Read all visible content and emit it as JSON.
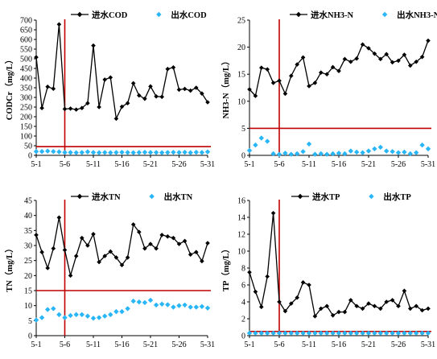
{
  "chart_data": [
    {
      "type": "line",
      "ylabel": "CODCr（mg/L）",
      "ylim": [
        0,
        700
      ],
      "yticks": [
        0,
        50,
        100,
        150,
        200,
        250,
        300,
        350,
        400,
        450,
        500,
        550,
        600,
        650,
        700
      ],
      "x_tick_labels": [
        "5-1",
        "5-6",
        "5-11",
        "5-16",
        "5-21",
        "5-26",
        "5-31"
      ],
      "x": [
        1,
        2,
        3,
        4,
        5,
        6,
        7,
        8,
        9,
        10,
        11,
        12,
        13,
        14,
        15,
        16,
        17,
        18,
        19,
        20,
        21,
        22,
        23,
        24,
        25,
        26,
        27,
        28,
        29,
        30,
        31
      ],
      "reference_lines": {
        "vertical_at_x": 6,
        "horizontal_at_y": 45
      },
      "series": [
        {
          "name": "进水COD",
          "color": "#000000",
          "marker": "diamond",
          "line": true,
          "values": [
            508,
            245,
            355,
            345,
            678,
            240,
            242,
            237,
            245,
            270,
            568,
            250,
            392,
            403,
            190,
            252,
            270,
            373,
            310,
            293,
            357,
            305,
            303,
            447,
            455,
            340,
            344,
            335,
            350,
            320,
            275
          ]
        },
        {
          "name": "出水COD",
          "color": "#29b6f6",
          "marker": "diamond",
          "line": false,
          "values": [
            20,
            20,
            22,
            20,
            18,
            15,
            15,
            14,
            15,
            18,
            15,
            14,
            15,
            14,
            15,
            16,
            15,
            14,
            15,
            16,
            15,
            15,
            14,
            15,
            16,
            15,
            16,
            14,
            16,
            15,
            18
          ]
        }
      ]
    },
    {
      "type": "line",
      "ylabel": "NH3-N（mg/L）",
      "ylim": [
        0,
        25
      ],
      "yticks": [
        0,
        5,
        10,
        15,
        20,
        25
      ],
      "x_tick_labels": [
        "5-1",
        "5-6",
        "5-11",
        "5-16",
        "5-21",
        "5-26",
        "5-31"
      ],
      "x": [
        1,
        2,
        3,
        4,
        5,
        6,
        7,
        8,
        9,
        10,
        11,
        12,
        13,
        14,
        15,
        16,
        17,
        18,
        19,
        20,
        21,
        22,
        23,
        24,
        25,
        26,
        27,
        28,
        29,
        30,
        31
      ],
      "reference_lines": {
        "vertical_at_x": 6,
        "horizontal_at_y": 5
      },
      "series": [
        {
          "name": "进水NH3-N",
          "color": "#000000",
          "marker": "diamond",
          "line": true,
          "values": [
            12.2,
            11.0,
            16.2,
            15.9,
            13.4,
            13.8,
            11.4,
            14.7,
            16.8,
            18.1,
            12.8,
            13.4,
            15.3,
            15.0,
            16.3,
            15.6,
            17.8,
            17.3,
            17.9,
            20.5,
            19.8,
            18.8,
            17.8,
            18.7,
            17.2,
            17.5,
            18.6,
            16.6,
            17.3,
            18.2,
            21.2
          ]
        },
        {
          "name": "出水NH3-N",
          "color": "#29b6f6",
          "marker": "diamond",
          "line": false,
          "values": [
            0.9,
            1.9,
            3.2,
            2.6,
            0.3,
            0.2,
            0.4,
            0.2,
            0.3,
            0.7,
            2.1,
            0.2,
            0.3,
            0.2,
            0.3,
            0.4,
            0.3,
            0.8,
            0.6,
            0.5,
            0.8,
            1.2,
            1.5,
            0.8,
            0.7,
            0.5,
            0.6,
            0.3,
            0.5,
            1.9,
            1.2
          ]
        }
      ]
    },
    {
      "type": "line",
      "ylabel": "TN（mg/L）",
      "ylim": [
        0,
        45
      ],
      "yticks": [
        0,
        5,
        10,
        15,
        20,
        25,
        30,
        35,
        40,
        45
      ],
      "x_tick_labels": [
        "5-1",
        "5-6",
        "5-11",
        "5-16",
        "5-21",
        "5-26",
        "5-31"
      ],
      "x": [
        1,
        2,
        3,
        4,
        5,
        6,
        7,
        8,
        9,
        10,
        11,
        12,
        13,
        14,
        15,
        16,
        17,
        18,
        19,
        20,
        21,
        22,
        23,
        24,
        25,
        26,
        27,
        28,
        29,
        30,
        31
      ],
      "reference_lines": {
        "vertical_at_x": 6,
        "horizontal_at_y": 15
      },
      "series": [
        {
          "name": "进水TN",
          "color": "#000000",
          "marker": "diamond",
          "line": true,
          "values": [
            33.5,
            27.8,
            22.5,
            29.0,
            39.3,
            28.5,
            20.0,
            26.5,
            32.5,
            30.0,
            33.8,
            24.5,
            26.5,
            28.0,
            26.0,
            23.5,
            26.0,
            37.0,
            34.5,
            29.0,
            30.5,
            29.0,
            33.5,
            33.0,
            32.5,
            30.5,
            31.5,
            27.0,
            27.8,
            24.8,
            30.8
          ]
        },
        {
          "name": "出水TN",
          "color": "#29b6f6",
          "marker": "diamond",
          "line": false,
          "values": [
            5.2,
            6.0,
            8.7,
            9.0,
            7.0,
            6.0,
            6.7,
            7.0,
            7.0,
            6.5,
            5.8,
            6.0,
            6.5,
            7.0,
            8.0,
            8.0,
            9.0,
            11.5,
            11.2,
            11.0,
            11.8,
            10.2,
            10.5,
            10.3,
            9.5,
            10.0,
            10.2,
            9.5,
            9.5,
            9.7,
            9.2
          ]
        }
      ]
    },
    {
      "type": "line",
      "ylabel": "TP（mg/L）",
      "ylim": [
        0,
        16
      ],
      "yticks": [
        0,
        2,
        4,
        6,
        8,
        10,
        12,
        14,
        16
      ],
      "x_tick_labels": [
        "5-1",
        "5-6",
        "5-11",
        "5-16",
        "5-21",
        "5-26",
        "5-31"
      ],
      "x": [
        1,
        2,
        3,
        4,
        5,
        6,
        7,
        8,
        9,
        10,
        11,
        12,
        13,
        14,
        15,
        16,
        17,
        18,
        19,
        20,
        21,
        22,
        23,
        24,
        25,
        26,
        27,
        28,
        29,
        30,
        31
      ],
      "reference_lines": {
        "vertical_at_x": 6,
        "horizontal_at_y": 0.5
      },
      "series": [
        {
          "name": "进水TP",
          "color": "#000000",
          "marker": "diamond",
          "line": true,
          "values": [
            7.5,
            5.2,
            3.4,
            7.0,
            14.5,
            4.0,
            2.9,
            3.8,
            4.5,
            6.3,
            6.0,
            2.3,
            3.2,
            3.5,
            2.4,
            2.8,
            2.8,
            4.2,
            3.5,
            3.2,
            3.8,
            3.5,
            3.2,
            4.0,
            4.2,
            3.5,
            5.3,
            3.2,
            3.5,
            3.0,
            3.2
          ]
        },
        {
          "name": "出水TP",
          "color": "#29b6f6",
          "marker": "diamond",
          "line": false,
          "values": [
            0.3,
            0.3,
            0.3,
            0.3,
            0.3,
            0.3,
            0.3,
            0.3,
            0.3,
            0.3,
            0.3,
            0.3,
            0.3,
            0.3,
            0.3,
            0.3,
            0.3,
            0.3,
            0.3,
            0.3,
            0.3,
            0.3,
            0.3,
            0.3,
            0.3,
            0.3,
            0.3,
            0.3,
            0.3,
            0.3,
            0.3
          ]
        }
      ]
    }
  ],
  "colors": {
    "axis": "#000000",
    "reference_line": "#c00000",
    "effluent": "#29b6f6",
    "influent": "#000000"
  }
}
